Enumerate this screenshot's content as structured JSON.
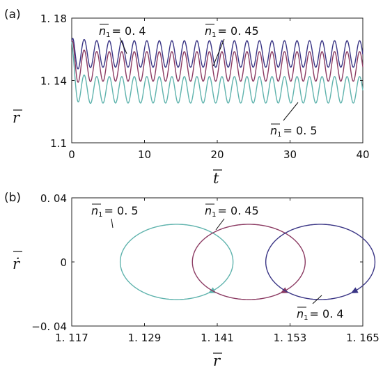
{
  "chart_data": [
    {
      "panel": "(a)",
      "type": "line",
      "xlabel": "t",
      "ylabel": "r",
      "xlim": [
        0,
        40
      ],
      "ylim": [
        1.1,
        1.18
      ],
      "xticks": [
        "0",
        "10",
        "20",
        "30",
        "40"
      ],
      "yticks": [
        "1.1",
        "1. 14",
        "1. 18"
      ],
      "series": [
        {
          "name": "n₁ = 0. 4",
          "color": "#3a3585",
          "start": 1.165,
          "mean": 1.157,
          "amplitude": 0.0085,
          "period": 1.72
        },
        {
          "name": "n₁ = 0. 45",
          "color": "#8b3a62",
          "start": 1.165,
          "mean": 1.149,
          "amplitude": 0.0095,
          "period": 1.72
        },
        {
          "name": "n₁ = 0. 5",
          "color": "#5fb3ad",
          "start": 1.165,
          "mean": 1.134,
          "amplitude": 0.0085,
          "period": 1.72
        }
      ],
      "annotations": [
        {
          "prefix": "n",
          "sub": "1",
          "value": "= 0. 4"
        },
        {
          "prefix": "n",
          "sub": "1",
          "value": "=  0. 45"
        },
        {
          "prefix": "n",
          "sub": "1",
          "value": "= 0. 5"
        }
      ]
    },
    {
      "panel": "(b)",
      "type": "line",
      "xlabel": "r",
      "ylabel": "ṙ",
      "xlim": [
        1.117,
        1.165
      ],
      "ylim": [
        -0.04,
        0.04
      ],
      "xticks": [
        "1. 117",
        "1. 129",
        "1. 141",
        "1. 153",
        "1. 165"
      ],
      "yticks": [
        "0. 04",
        "0",
        "−0. 04"
      ],
      "series": [
        {
          "name": "n₁ = 0. 5",
          "color": "#5fb3ad",
          "center": 1.1343,
          "half_width": 0.0093,
          "half_height": 0.0235
        },
        {
          "name": "n₁ = 0. 45",
          "color": "#8b3a62",
          "center": 1.1462,
          "half_width": 0.0093,
          "half_height": 0.0235
        },
        {
          "name": "n₁ = 0. 4",
          "color": "#3a3585",
          "center": 1.158,
          "half_width": 0.009,
          "half_height": 0.0235
        }
      ],
      "annotations": [
        {
          "prefix": "n",
          "sub": "1",
          "value": "= 0. 5"
        },
        {
          "prefix": "n",
          "sub": "1",
          "value": "=  0. 45"
        },
        {
          "prefix": "n",
          "sub": "1",
          "value": "= 0. 4"
        }
      ]
    }
  ]
}
